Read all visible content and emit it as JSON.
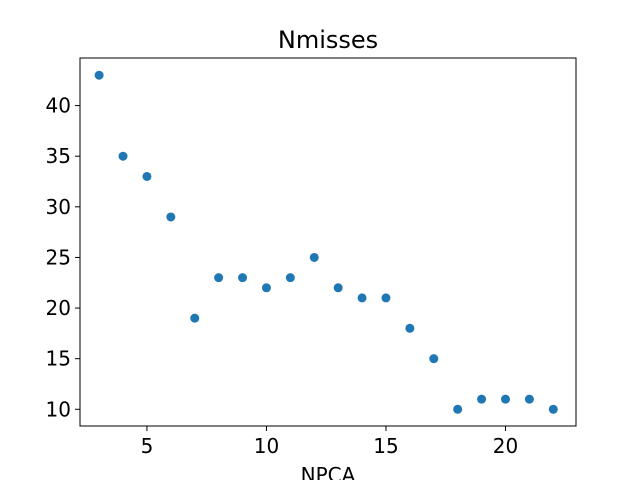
{
  "chart_data": {
    "type": "scatter",
    "title": "Nmisses",
    "xlabel": "NPCA",
    "ylabel": "",
    "xlim": [
      2.2,
      22.95
    ],
    "ylim": [
      8.35,
      44.7
    ],
    "xticks": [
      5,
      10,
      15,
      20
    ],
    "yticks": [
      10,
      15,
      20,
      25,
      30,
      35,
      40
    ],
    "grid": false,
    "marker_color": "#1f77b4",
    "series": [
      {
        "x": [
          3,
          4,
          5,
          6,
          7,
          8,
          9,
          10,
          11,
          12,
          13,
          14,
          15,
          16,
          17,
          18,
          19,
          20,
          21,
          22
        ],
        "y": [
          43,
          35,
          33,
          29,
          19,
          23,
          23,
          22,
          23,
          25,
          22,
          21,
          21,
          18,
          15,
          10,
          11,
          11,
          11,
          10
        ]
      }
    ]
  }
}
